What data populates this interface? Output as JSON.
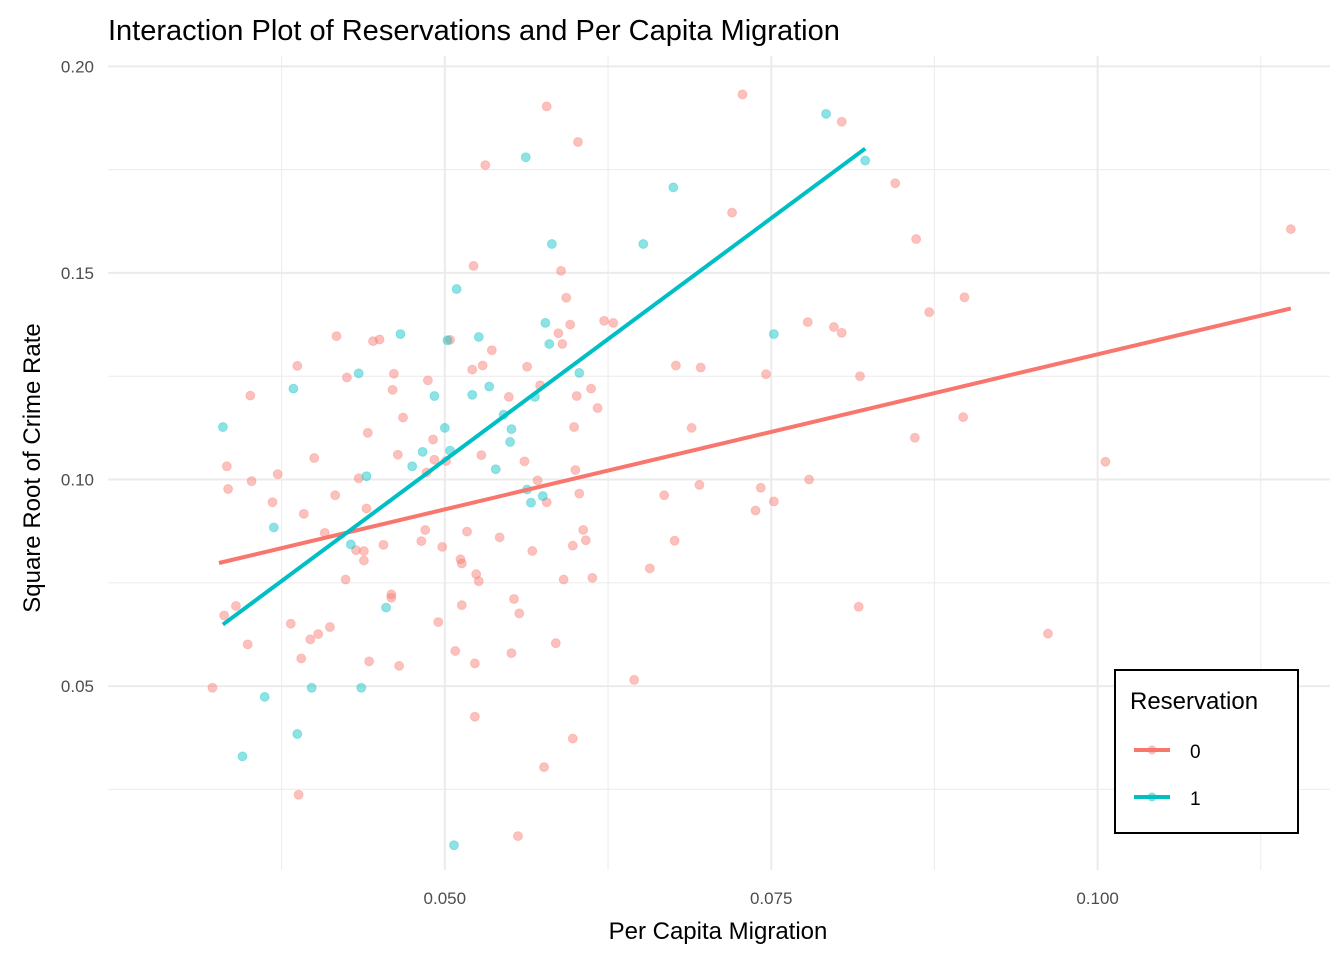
{
  "chart_data": {
    "type": "scatter",
    "title": "Interaction Plot of Reservations and Per Capita Migration",
    "xlabel": "Per Capita Migration",
    "ylabel": "Square Root of Crime Rate",
    "xlim": [
      0.0242,
      0.1178
    ],
    "ylim": [
      0.0055,
      0.2025
    ],
    "x_ticks": [
      0.05,
      0.075,
      0.1
    ],
    "x_tick_labels": [
      "0.050",
      "0.075",
      "0.100"
    ],
    "x_minor": [
      0.0375,
      0.0625,
      0.0875,
      0.1125
    ],
    "y_ticks": [
      0.05,
      0.1,
      0.15,
      0.2
    ],
    "y_tick_labels": [
      "0.05",
      "0.10",
      "0.15",
      "0.20"
    ],
    "y_minor": [
      0.025,
      0.075,
      0.125,
      0.175
    ],
    "grid": true,
    "legend": {
      "title": "Reservation",
      "position": "bottom-right",
      "entries": [
        {
          "label": "0",
          "color": "#F8766D"
        },
        {
          "label": "1",
          "color": "#00BFC4"
        }
      ]
    },
    "series": [
      {
        "name": "0",
        "color": "#F8766D",
        "fit_line": {
          "x": [
            0.0327,
            0.1148
          ],
          "y": [
            0.0798,
            0.1414
          ]
        },
        "points": [
          [
            0.0322,
            0.0496
          ],
          [
            0.0331,
            0.0671
          ],
          [
            0.0333,
            0.1032
          ],
          [
            0.0334,
            0.0977
          ],
          [
            0.034,
            0.0694
          ],
          [
            0.0349,
            0.0601
          ],
          [
            0.0351,
            0.1203
          ],
          [
            0.0352,
            0.0996
          ],
          [
            0.0368,
            0.0945
          ],
          [
            0.0372,
            0.1013
          ],
          [
            0.0382,
            0.0651
          ],
          [
            0.0387,
            0.1275
          ],
          [
            0.0388,
            0.0237
          ],
          [
            0.039,
            0.0567
          ],
          [
            0.0392,
            0.0917
          ],
          [
            0.0397,
            0.0613
          ],
          [
            0.04,
            0.1052
          ],
          [
            0.0403,
            0.0626
          ],
          [
            0.0408,
            0.0871
          ],
          [
            0.0412,
            0.0643
          ],
          [
            0.0416,
            0.0962
          ],
          [
            0.0417,
            0.1347
          ],
          [
            0.0424,
            0.0758
          ],
          [
            0.0425,
            0.1247
          ],
          [
            0.0432,
            0.0829
          ],
          [
            0.0434,
            0.1003
          ],
          [
            0.0438,
            0.0827
          ],
          [
            0.0438,
            0.0804
          ],
          [
            0.044,
            0.093
          ],
          [
            0.0441,
            0.1113
          ],
          [
            0.0442,
            0.056
          ],
          [
            0.0445,
            0.1335
          ],
          [
            0.045,
            0.1339
          ],
          [
            0.0453,
            0.0842
          ],
          [
            0.0459,
            0.0714
          ],
          [
            0.0459,
            0.0722
          ],
          [
            0.046,
            0.1217
          ],
          [
            0.0461,
            0.1256
          ],
          [
            0.0464,
            0.106
          ],
          [
            0.0465,
            0.0549
          ],
          [
            0.0468,
            0.115
          ],
          [
            0.0482,
            0.0851
          ],
          [
            0.0485,
            0.0878
          ],
          [
            0.0486,
            0.1017
          ],
          [
            0.0487,
            0.124
          ],
          [
            0.0491,
            0.1097
          ],
          [
            0.0492,
            0.1048
          ],
          [
            0.0495,
            0.0655
          ],
          [
            0.0498,
            0.0837
          ],
          [
            0.0501,
            0.1045
          ],
          [
            0.0504,
            0.1338
          ],
          [
            0.0508,
            0.0585
          ],
          [
            0.0512,
            0.0807
          ],
          [
            0.0513,
            0.0797
          ],
          [
            0.0513,
            0.0696
          ],
          [
            0.0517,
            0.0874
          ],
          [
            0.0521,
            0.1266
          ],
          [
            0.0522,
            0.1517
          ],
          [
            0.0523,
            0.0555
          ],
          [
            0.0523,
            0.0426
          ],
          [
            0.0524,
            0.0771
          ],
          [
            0.0526,
            0.0754
          ],
          [
            0.0528,
            0.1059
          ],
          [
            0.0529,
            0.1276
          ],
          [
            0.0531,
            0.1761
          ],
          [
            0.0536,
            0.1313
          ],
          [
            0.0542,
            0.086
          ],
          [
            0.0549,
            0.12
          ],
          [
            0.0551,
            0.058
          ],
          [
            0.0553,
            0.0711
          ],
          [
            0.0556,
            0.0137
          ],
          [
            0.0557,
            0.0676
          ],
          [
            0.0561,
            0.1044
          ],
          [
            0.0563,
            0.1273
          ],
          [
            0.0567,
            0.0827
          ],
          [
            0.0571,
            0.0998
          ],
          [
            0.0573,
            0.1228
          ],
          [
            0.0576,
            0.0304
          ],
          [
            0.0578,
            0.0945
          ],
          [
            0.0578,
            0.1903
          ],
          [
            0.0585,
            0.0604
          ],
          [
            0.0587,
            0.1354
          ],
          [
            0.0589,
            0.1505
          ],
          [
            0.059,
            0.1328
          ],
          [
            0.0591,
            0.0758
          ],
          [
            0.0593,
            0.144
          ],
          [
            0.0596,
            0.1375
          ],
          [
            0.0598,
            0.084
          ],
          [
            0.0598,
            0.0373
          ],
          [
            0.0599,
            0.1127
          ],
          [
            0.06,
            0.1023
          ],
          [
            0.0601,
            0.1202
          ],
          [
            0.0602,
            0.1817
          ],
          [
            0.0603,
            0.0966
          ],
          [
            0.0606,
            0.0878
          ],
          [
            0.0608,
            0.0853
          ],
          [
            0.0612,
            0.122
          ],
          [
            0.0613,
            0.0762
          ],
          [
            0.0617,
            0.1173
          ],
          [
            0.0622,
            0.1384
          ],
          [
            0.0629,
            0.1379
          ],
          [
            0.0645,
            0.0515
          ],
          [
            0.0657,
            0.0785
          ],
          [
            0.0668,
            0.0962
          ],
          [
            0.0676,
            0.0852
          ],
          [
            0.0677,
            0.1276
          ],
          [
            0.0689,
            0.1125
          ],
          [
            0.0695,
            0.0987
          ],
          [
            0.0696,
            0.1271
          ],
          [
            0.072,
            0.1646
          ],
          [
            0.0728,
            0.1932
          ],
          [
            0.0738,
            0.0925
          ],
          [
            0.0742,
            0.098
          ],
          [
            0.0746,
            0.1255
          ],
          [
            0.0752,
            0.0947
          ],
          [
            0.0778,
            0.1381
          ],
          [
            0.0779,
            0.1
          ],
          [
            0.0798,
            0.1369
          ],
          [
            0.0804,
            0.1355
          ],
          [
            0.0804,
            0.1866
          ],
          [
            0.0817,
            0.0692
          ],
          [
            0.0818,
            0.125
          ],
          [
            0.0845,
            0.1717
          ],
          [
            0.086,
            0.1101
          ],
          [
            0.0861,
            0.1582
          ],
          [
            0.0871,
            0.1405
          ],
          [
            0.0897,
            0.1151
          ],
          [
            0.0898,
            0.1441
          ],
          [
            0.0962,
            0.0627
          ],
          [
            0.1006,
            0.1043
          ],
          [
            0.1148,
            0.1606
          ]
        ]
      },
      {
        "name": "1",
        "color": "#00BFC4",
        "fit_line": {
          "x": [
            0.033,
            0.0822
          ],
          "y": [
            0.0649,
            0.1801
          ]
        },
        "points": [
          [
            0.033,
            0.1127
          ],
          [
            0.0345,
            0.033
          ],
          [
            0.0362,
            0.0474
          ],
          [
            0.0369,
            0.0884
          ],
          [
            0.0384,
            0.122
          ],
          [
            0.0387,
            0.0384
          ],
          [
            0.0398,
            0.0496
          ],
          [
            0.0428,
            0.0843
          ],
          [
            0.0434,
            0.1257
          ],
          [
            0.0436,
            0.0496
          ],
          [
            0.044,
            0.1008
          ],
          [
            0.0455,
            0.069
          ],
          [
            0.0466,
            0.1352
          ],
          [
            0.0475,
            0.1032
          ],
          [
            0.0483,
            0.1067
          ],
          [
            0.0492,
            0.1202
          ],
          [
            0.05,
            0.1125
          ],
          [
            0.0502,
            0.1337
          ],
          [
            0.0504,
            0.107
          ],
          [
            0.0507,
            0.0115
          ],
          [
            0.0509,
            0.1461
          ],
          [
            0.0521,
            0.1205
          ],
          [
            0.0526,
            0.1345
          ],
          [
            0.0534,
            0.1225
          ],
          [
            0.0539,
            0.1025
          ],
          [
            0.0545,
            0.1157
          ],
          [
            0.055,
            0.1091
          ],
          [
            0.0551,
            0.1122
          ],
          [
            0.0562,
            0.178
          ],
          [
            0.0563,
            0.0976
          ],
          [
            0.0566,
            0.0944
          ],
          [
            0.0569,
            0.12
          ],
          [
            0.0575,
            0.096
          ],
          [
            0.0577,
            0.1379
          ],
          [
            0.058,
            0.1328
          ],
          [
            0.0582,
            0.157
          ],
          [
            0.0603,
            0.1258
          ],
          [
            0.0652,
            0.157
          ],
          [
            0.0675,
            0.1707
          ],
          [
            0.0752,
            0.1352
          ],
          [
            0.0792,
            0.1885
          ],
          [
            0.0822,
            0.1772
          ]
        ]
      }
    ]
  }
}
